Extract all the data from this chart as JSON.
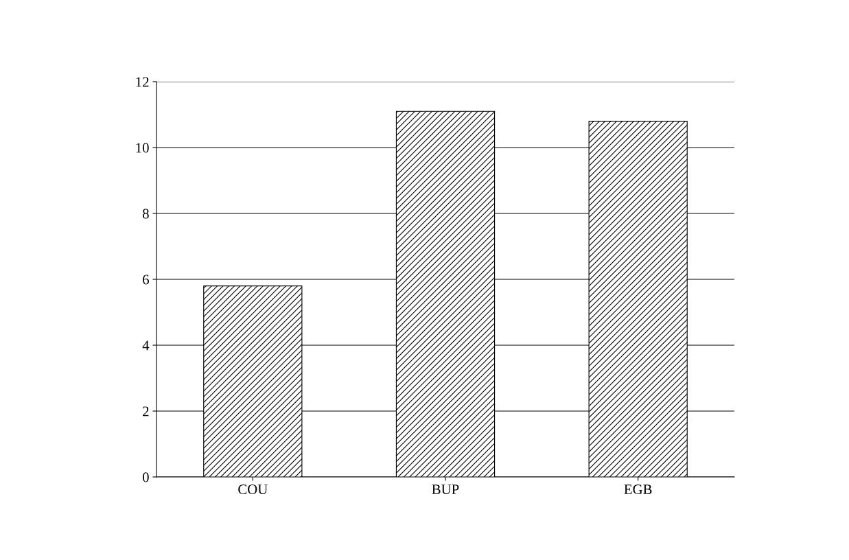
{
  "chart_data": {
    "type": "bar",
    "categories": [
      "COU",
      "BUP",
      "EGB"
    ],
    "values": [
      5.8,
      11.1,
      10.8
    ],
    "color": "#000000",
    "ylim": [
      0,
      12
    ],
    "yticks": [
      0,
      2,
      4,
      6,
      8,
      10,
      12
    ],
    "grid": "y"
  }
}
